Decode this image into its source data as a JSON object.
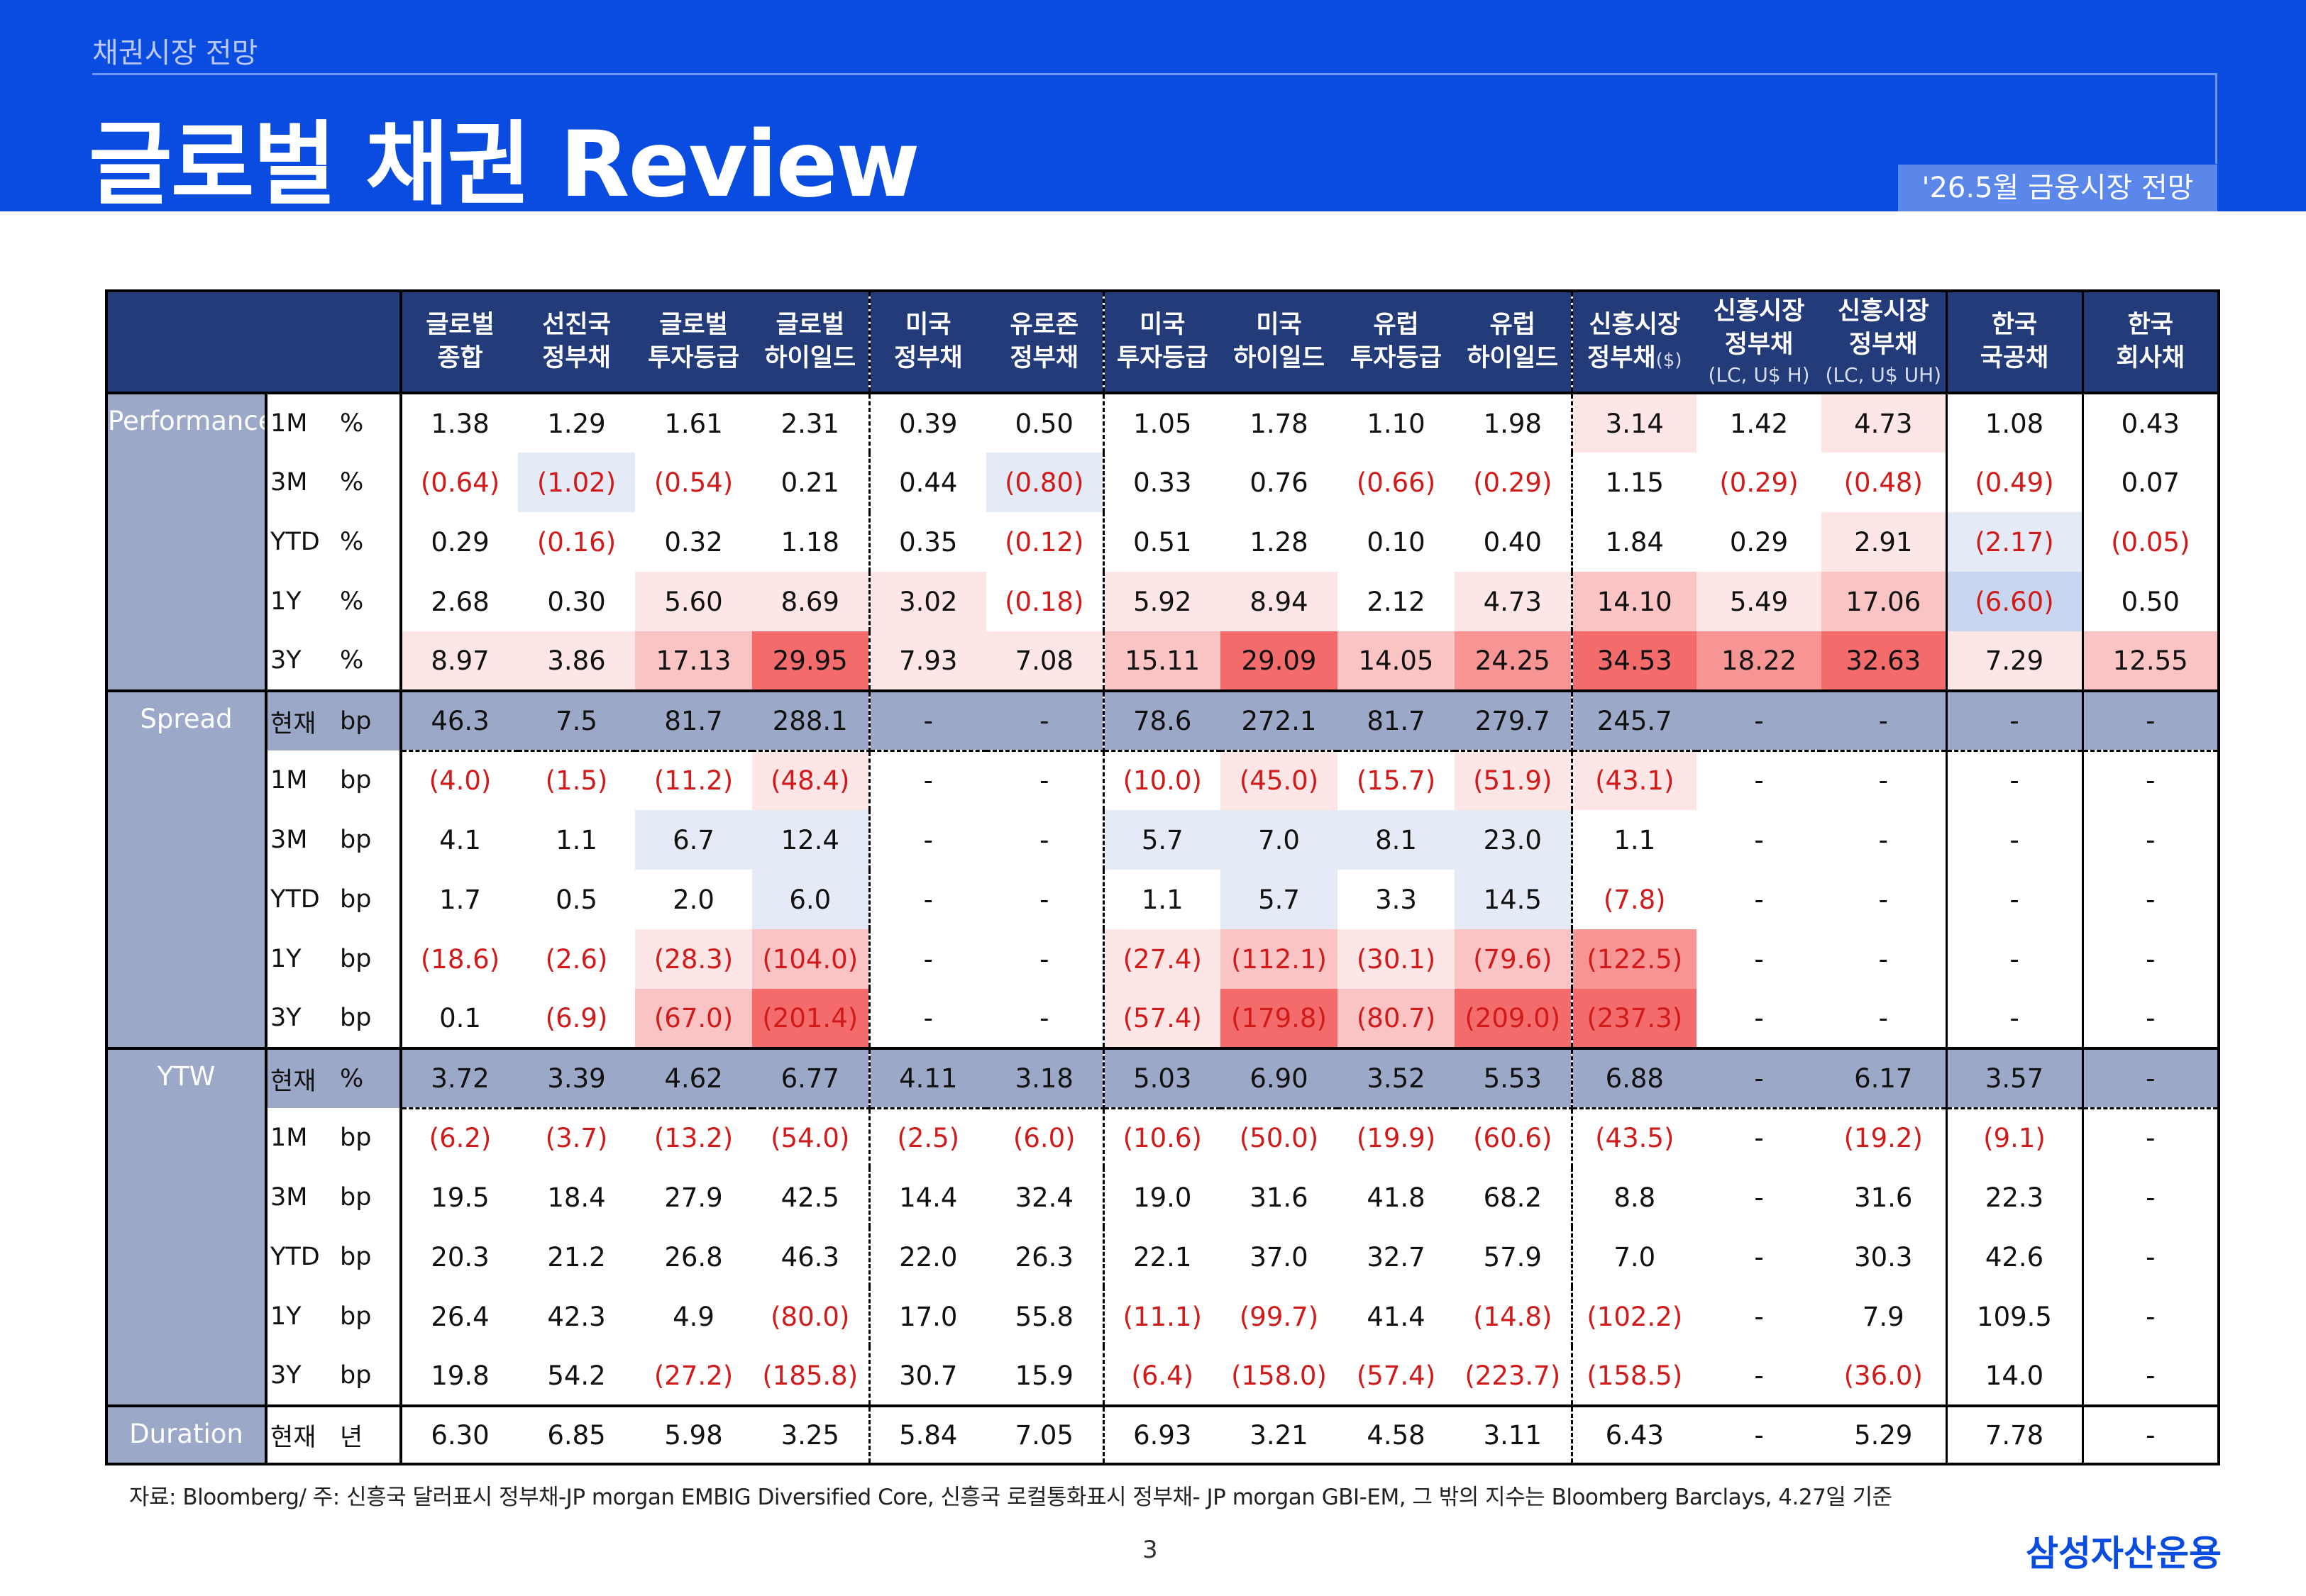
{
  "header": {
    "category": "채권시장 전망",
    "title": "글로벌 채권 Review",
    "date_badge": "'26.5월 금융시장 전망"
  },
  "columns": [
    {
      "line1": "글로벌",
      "line2": "종합"
    },
    {
      "line1": "선진국",
      "line2": "정부채"
    },
    {
      "line1": "글로벌",
      "line2": "투자등급"
    },
    {
      "line1": "글로벌",
      "line2": "하이일드"
    },
    {
      "line1": "미국",
      "line2": "정부채"
    },
    {
      "line1": "유로존",
      "line2": "정부채"
    },
    {
      "line1": "미국",
      "line2": "투자등급"
    },
    {
      "line1": "미국",
      "line2": "하이일드"
    },
    {
      "line1": "유럽",
      "line2": "투자등급"
    },
    {
      "line1": "유럽",
      "line2": "하이일드"
    },
    {
      "line1": "신흥시장",
      "line2": "정부채",
      "unit": "($)"
    },
    {
      "line1": "신흥시장",
      "line2": "정부채",
      "sub": "(LC, U$ H)"
    },
    {
      "line1": "신흥시장",
      "line2": "정부채",
      "sub": "(LC, U$ UH)"
    },
    {
      "line1": "한국",
      "line2": "국공채"
    },
    {
      "line1": "한국",
      "line2": "회사채"
    }
  ],
  "sections": [
    {
      "name": "Performance",
      "rows": [
        {
          "period": "1M",
          "unit": "%",
          "values": [
            "1.38",
            "1.29",
            "1.61",
            "2.31",
            "0.39",
            "0.50",
            "1.05",
            "1.78",
            "1.10",
            "1.98",
            "3.14",
            "1.42",
            "4.73",
            "1.08",
            "0.43"
          ]
        },
        {
          "period": "3M",
          "unit": "%",
          "values": [
            "(0.64)",
            "(1.02)",
            "(0.54)",
            "0.21",
            "0.44",
            "(0.80)",
            "0.33",
            "0.76",
            "(0.66)",
            "(0.29)",
            "1.15",
            "(0.29)",
            "(0.48)",
            "(0.49)",
            "0.07"
          ]
        },
        {
          "period": "YTD",
          "unit": "%",
          "values": [
            "0.29",
            "(0.16)",
            "0.32",
            "1.18",
            "0.35",
            "(0.12)",
            "0.51",
            "1.28",
            "0.10",
            "0.40",
            "1.84",
            "0.29",
            "2.91",
            "(2.17)",
            "(0.05)"
          ]
        },
        {
          "period": "1Y",
          "unit": "%",
          "values": [
            "2.68",
            "0.30",
            "5.60",
            "8.69",
            "3.02",
            "(0.18)",
            "5.92",
            "8.94",
            "2.12",
            "4.73",
            "14.10",
            "5.49",
            "17.06",
            "(6.60)",
            "0.50"
          ]
        },
        {
          "period": "3Y",
          "unit": "%",
          "values": [
            "8.97",
            "3.86",
            "17.13",
            "29.95",
            "7.93",
            "7.08",
            "15.11",
            "29.09",
            "14.05",
            "24.25",
            "34.53",
            "18.22",
            "32.63",
            "7.29",
            "12.55"
          ]
        }
      ]
    },
    {
      "name": "Spread",
      "rows": [
        {
          "period": "현재",
          "unit": "bp",
          "current": true,
          "values": [
            "46.3",
            "7.5",
            "81.7",
            "288.1",
            "-",
            "-",
            "78.6",
            "272.1",
            "81.7",
            "279.7",
            "245.7",
            "-",
            "-",
            "-",
            "-"
          ]
        },
        {
          "period": "1M",
          "unit": "bp",
          "values": [
            "(4.0)",
            "(1.5)",
            "(11.2)",
            "(48.4)",
            "-",
            "-",
            "(10.0)",
            "(45.0)",
            "(15.7)",
            "(51.9)",
            "(43.1)",
            "-",
            "-",
            "-",
            "-"
          ]
        },
        {
          "period": "3M",
          "unit": "bp",
          "values": [
            "4.1",
            "1.1",
            "6.7",
            "12.4",
            "-",
            "-",
            "5.7",
            "7.0",
            "8.1",
            "23.0",
            "1.1",
            "-",
            "-",
            "-",
            "-"
          ]
        },
        {
          "period": "YTD",
          "unit": "bp",
          "values": [
            "1.7",
            "0.5",
            "2.0",
            "6.0",
            "-",
            "-",
            "1.1",
            "5.7",
            "3.3",
            "14.5",
            "(7.8)",
            "-",
            "-",
            "-",
            "-"
          ]
        },
        {
          "period": "1Y",
          "unit": "bp",
          "values": [
            "(18.6)",
            "(2.6)",
            "(28.3)",
            "(104.0)",
            "-",
            "-",
            "(27.4)",
            "(112.1)",
            "(30.1)",
            "(79.6)",
            "(122.5)",
            "-",
            "-",
            "-",
            "-"
          ]
        },
        {
          "period": "3Y",
          "unit": "bp",
          "values": [
            "0.1",
            "(6.9)",
            "(67.0)",
            "(201.4)",
            "-",
            "-",
            "(57.4)",
            "(179.8)",
            "(80.7)",
            "(209.0)",
            "(237.3)",
            "-",
            "-",
            "-",
            "-"
          ]
        }
      ]
    },
    {
      "name": "YTW",
      "rows": [
        {
          "period": "현재",
          "unit": "%",
          "current": true,
          "values": [
            "3.72",
            "3.39",
            "4.62",
            "6.77",
            "4.11",
            "3.18",
            "5.03",
            "6.90",
            "3.52",
            "5.53",
            "6.88",
            "-",
            "6.17",
            "3.57",
            "-"
          ]
        },
        {
          "period": "1M",
          "unit": "bp",
          "values": [
            "(6.2)",
            "(3.7)",
            "(13.2)",
            "(54.0)",
            "(2.5)",
            "(6.0)",
            "(10.6)",
            "(50.0)",
            "(19.9)",
            "(60.6)",
            "(43.5)",
            "-",
            "(19.2)",
            "(9.1)",
            "-"
          ]
        },
        {
          "period": "3M",
          "unit": "bp",
          "values": [
            "19.5",
            "18.4",
            "27.9",
            "42.5",
            "14.4",
            "32.4",
            "19.0",
            "31.6",
            "41.8",
            "68.2",
            "8.8",
            "-",
            "31.6",
            "22.3",
            "-"
          ]
        },
        {
          "period": "YTD",
          "unit": "bp",
          "values": [
            "20.3",
            "21.2",
            "26.8",
            "46.3",
            "22.0",
            "26.3",
            "22.1",
            "37.0",
            "32.7",
            "57.9",
            "7.0",
            "-",
            "30.3",
            "42.6",
            "-"
          ]
        },
        {
          "period": "1Y",
          "unit": "bp",
          "values": [
            "26.4",
            "42.3",
            "4.9",
            "(80.0)",
            "17.0",
            "55.8",
            "(11.1)",
            "(99.7)",
            "41.4",
            "(14.8)",
            "(102.2)",
            "-",
            "7.9",
            "109.5",
            "-"
          ]
        },
        {
          "period": "3Y",
          "unit": "bp",
          "values": [
            "19.8",
            "54.2",
            "(27.2)",
            "(185.8)",
            "30.7",
            "15.9",
            "(6.4)",
            "(158.0)",
            "(57.4)",
            "(223.7)",
            "(158.5)",
            "-",
            "(36.0)",
            "14.0",
            "-"
          ]
        }
      ]
    },
    {
      "name": "Duration",
      "rows": [
        {
          "period": "현재",
          "unit": "년",
          "values": [
            "6.30",
            "6.85",
            "5.98",
            "3.25",
            "5.84",
            "7.05",
            "6.93",
            "3.21",
            "4.58",
            "3.11",
            "6.43",
            "-",
            "5.29",
            "7.78",
            "-"
          ]
        }
      ]
    }
  ],
  "heat_colors": {
    "strong_red": "#f36b6b",
    "red": "#f79494",
    "light_red": "#fbc4c4",
    "pale_red": "#fde6e6",
    "neutral": "#ffffff",
    "pale_blue": "#e4eaf6",
    "light_blue": "#c9d6ef",
    "blue": "#a9bfe6",
    "strong_blue": "#5f8fd2"
  },
  "negative_text_color": "#d11a1a",
  "footer": {
    "source_note": "자료: Bloomberg/ 주: 신흥국 달러표시 정부채-JP morgan EMBIG Diversified Core, 신흥국 로컬통화표시 정부채- JP morgan GBI-EM, 그 밖의 지수는 Bloomberg Barclays, 4.27일 기준",
    "page_number": "3",
    "brand": "삼성자산운용"
  }
}
